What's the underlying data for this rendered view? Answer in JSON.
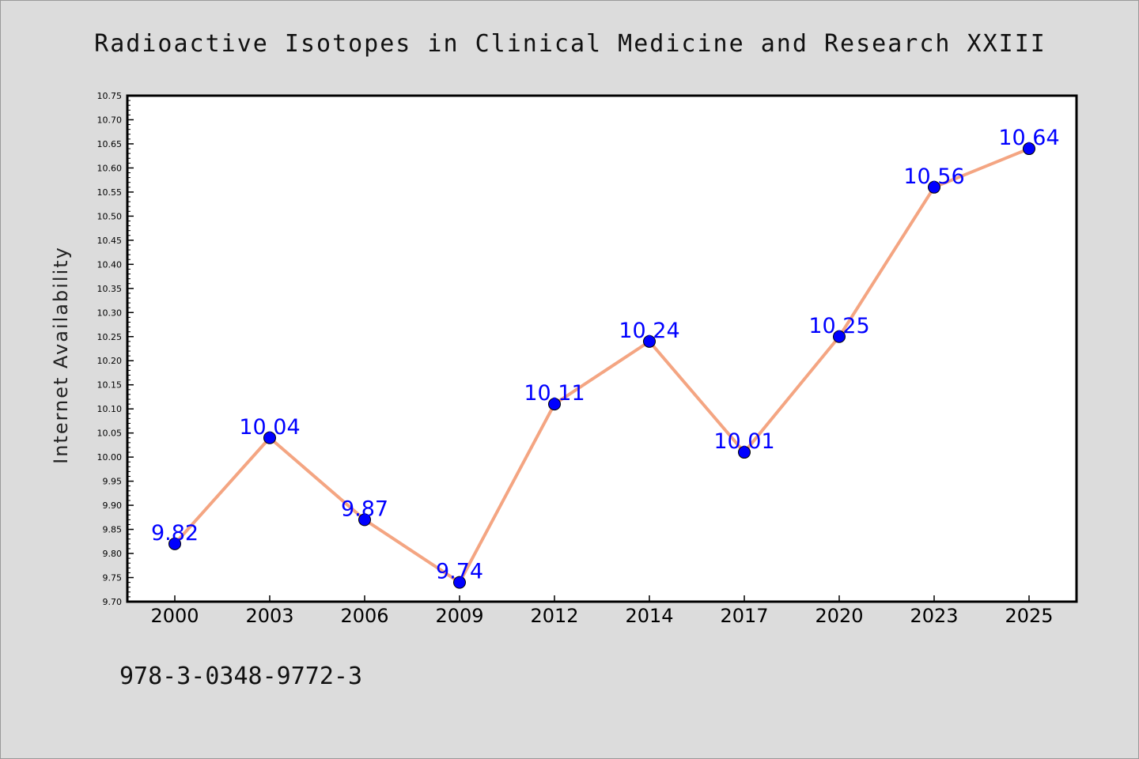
{
  "chart_data": {
    "type": "line",
    "title": "Radioactive Isotopes in Clinical Medicine and Research XXIII",
    "xlabel": "",
    "ylabel": "Internet Availability",
    "categories": [
      "2000",
      "2003",
      "2006",
      "2009",
      "2012",
      "2014",
      "2017",
      "2020",
      "2023",
      "2025"
    ],
    "series": [
      {
        "values": [
          9.82,
          10.04,
          9.87,
          9.74,
          10.11,
          10.24,
          10.01,
          10.25,
          10.56,
          10.64
        ],
        "data_labels": [
          "9.82",
          "10.04",
          "9.87",
          "9.74",
          "10.11",
          "10.24",
          "10.01",
          "10.25",
          "10.56",
          "10.64"
        ],
        "line_color": "#f4a582",
        "marker_color": "#0000ff"
      }
    ],
    "ylim": [
      9.7,
      10.75
    ],
    "yticks": [
      "9.70",
      "9.75",
      "9.80",
      "9.85",
      "9.90",
      "9.95",
      "10.00",
      "10.05",
      "10.10",
      "10.15",
      "10.20",
      "10.25",
      "10.30",
      "10.35",
      "10.40",
      "10.45",
      "10.50",
      "10.55",
      "10.60",
      "10.65",
      "10.70",
      "10.75"
    ],
    "grid": false,
    "legend": "none"
  },
  "footer": {
    "isbn": "978-3-0348-9772-3"
  },
  "colors": {
    "background": "#dcdcdc",
    "plot_background": "#ffffff",
    "label_color": "#0000ff"
  }
}
